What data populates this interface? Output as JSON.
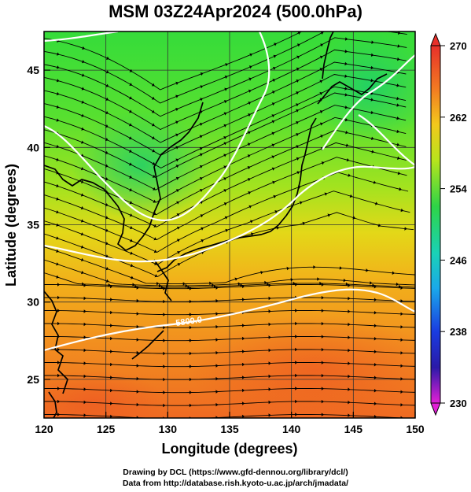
{
  "title": "MSM 03Z24Apr2024 (500.0hPa)",
  "axes": {
    "xlabel": "Longitude (degrees)",
    "ylabel": "Latitude  (degrees)",
    "xticks": [
      "120",
      "125",
      "130",
      "135",
      "140",
      "145",
      "150"
    ],
    "yticks": [
      "25",
      "30",
      "35",
      "40",
      "45"
    ],
    "xlim": [
      120,
      150
    ],
    "ylim": [
      22.5,
      47.5
    ]
  },
  "colorbar": {
    "ticks": [
      "270",
      "262",
      "254",
      "246",
      "238",
      "230"
    ],
    "range": [
      230,
      270
    ]
  },
  "contour_label": "5800.0",
  "credits": {
    "line1": "Drawing by DCL (https://www.gfd-dennou.org/library/dcl/)",
    "line2": "Data from http://database.rish.kyoto-u.ac.jp/arch/jmadata/"
  },
  "colors": {
    "field_cold": "#2fd84a",
    "field_warm": "#f07a1e",
    "streamline": "#000000",
    "contour": "#ffffff"
  }
}
